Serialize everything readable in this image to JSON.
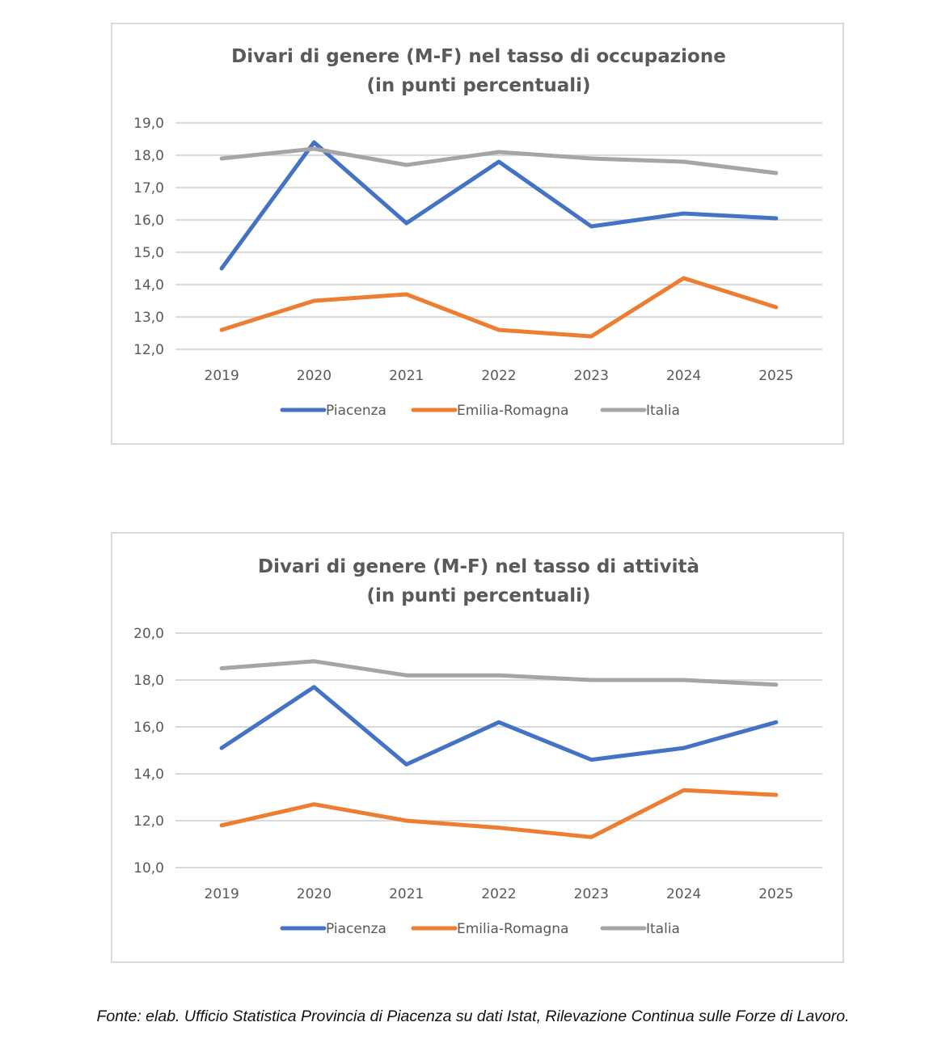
{
  "chart_data": [
    {
      "type": "line",
      "title": "Divari di genere (M-F) nel tasso di occupazione",
      "subtitle": "(in punti percentuali)",
      "xlabel": "",
      "ylabel": "",
      "categories": [
        "2019",
        "2020",
        "2021",
        "2022",
        "2023",
        "2024",
        "2025"
      ],
      "ylim": [
        12,
        19
      ],
      "yticks": [
        12,
        13,
        14,
        15,
        16,
        17,
        18,
        19
      ],
      "ytick_labels": [
        "12,0",
        "13,0",
        "14,0",
        "15,0",
        "16,0",
        "17,0",
        "18,0",
        "19,0"
      ],
      "grid": true,
      "legend_position": "bottom",
      "series": [
        {
          "name": "Piacenza",
          "color": "#4472c4",
          "values": [
            14.5,
            18.4,
            15.9,
            17.8,
            15.8,
            16.2,
            16.05
          ]
        },
        {
          "name": "Emilia-Romagna",
          "color": "#ed7d31",
          "values": [
            12.6,
            13.5,
            13.7,
            12.6,
            12.4,
            14.2,
            13.3
          ]
        },
        {
          "name": "Italia",
          "color": "#a5a5a5",
          "values": [
            17.9,
            18.2,
            17.7,
            18.1,
            17.9,
            17.8,
            17.45
          ]
        }
      ]
    },
    {
      "type": "line",
      "title": "Divari di genere (M-F) nel tasso di attività",
      "subtitle": "(in punti percentuali)",
      "xlabel": "",
      "ylabel": "",
      "categories": [
        "2019",
        "2020",
        "2021",
        "2022",
        "2023",
        "2024",
        "2025"
      ],
      "ylim": [
        10,
        20
      ],
      "yticks": [
        10,
        12,
        14,
        16,
        18,
        20
      ],
      "ytick_labels": [
        "10,0",
        "12,0",
        "14,0",
        "16,0",
        "18,0",
        "20,0"
      ],
      "grid": true,
      "legend_position": "bottom",
      "series": [
        {
          "name": "Piacenza",
          "color": "#4472c4",
          "values": [
            15.1,
            17.7,
            14.4,
            16.2,
            14.6,
            15.1,
            16.2
          ]
        },
        {
          "name": "Emilia-Romagna",
          "color": "#ed7d31",
          "values": [
            11.8,
            12.7,
            12.0,
            11.7,
            11.3,
            13.3,
            13.1
          ]
        },
        {
          "name": "Italia",
          "color": "#a5a5a5",
          "values": [
            18.5,
            18.8,
            18.2,
            18.2,
            18.0,
            18.0,
            17.8
          ]
        }
      ]
    }
  ],
  "source_note": "Fonte: elab. Ufficio Statistica Provincia di Piacenza su dati Istat, Rilevazione Continua sulle Forze di Lavoro."
}
